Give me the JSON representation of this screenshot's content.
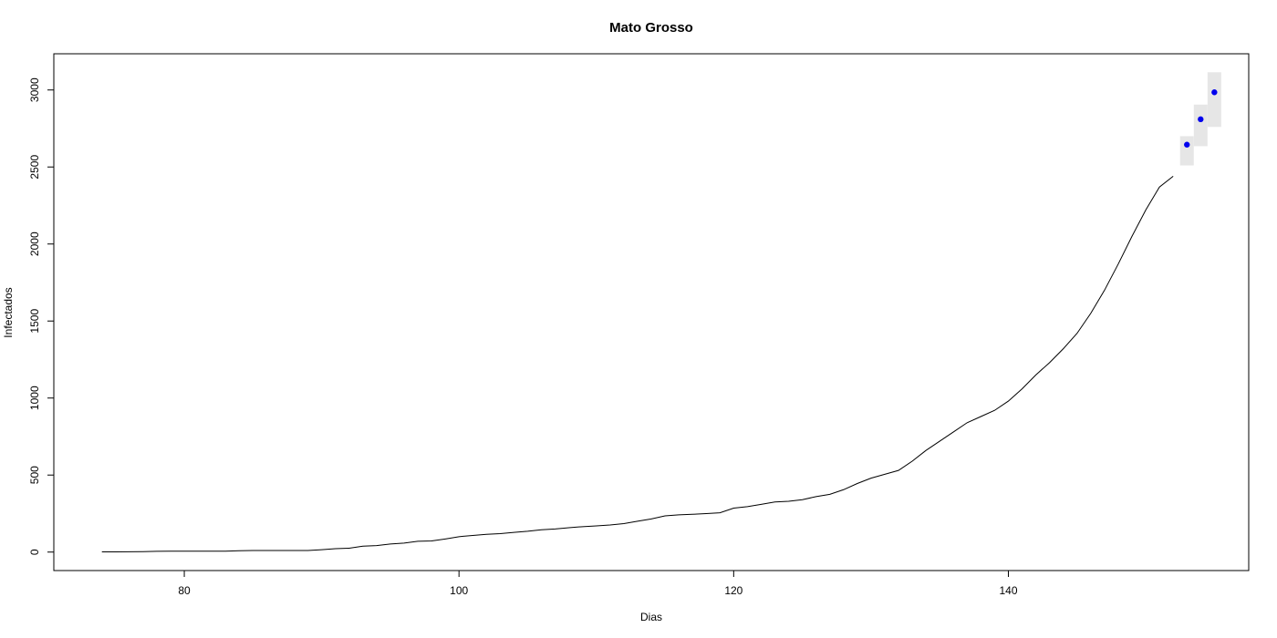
{
  "chart_data": {
    "type": "line",
    "title": "Mato Grosso",
    "xlabel": "Dias",
    "ylabel": "Infectados",
    "xlim": [
      70.5,
      157.5
    ],
    "ylim": [
      -120,
      3235
    ],
    "x_ticks": [
      80,
      100,
      120,
      140
    ],
    "y_ticks": [
      0,
      500,
      1000,
      1500,
      2000,
      2500,
      3000
    ],
    "grid": false,
    "legend": "none",
    "colors": {
      "line": "#000000",
      "forecast_point": "#0000ee",
      "forecast_band": "#e6e6e6"
    },
    "series": [
      {
        "x": [
          74,
          75,
          76,
          77,
          78,
          79,
          80,
          81,
          82,
          83,
          84,
          85,
          86,
          87,
          88,
          89,
          90,
          91,
          92,
          93,
          94,
          95,
          96,
          97,
          98,
          99,
          100,
          101,
          102,
          103,
          104,
          105,
          106,
          107,
          108,
          109,
          110,
          111,
          112,
          113,
          114,
          115,
          116,
          117,
          118,
          119,
          120,
          121,
          122,
          123,
          124,
          125,
          126,
          127,
          128,
          129,
          130,
          131,
          132,
          133,
          134,
          135,
          136,
          137,
          138,
          139,
          140,
          141,
          142,
          143,
          144,
          145,
          146,
          147,
          148,
          149,
          150,
          151,
          152
        ],
        "values": [
          1,
          1,
          2,
          3,
          5,
          6,
          6,
          6,
          6,
          6,
          9,
          10,
          10,
          10,
          10,
          10,
          15,
          22,
          25,
          38,
          42,
          52,
          58,
          70,
          72,
          85,
          100,
          108,
          115,
          120,
          128,
          135,
          145,
          150,
          158,
          165,
          170,
          176,
          185,
          200,
          215,
          235,
          242,
          245,
          250,
          255,
          285,
          295,
          310,
          325,
          330,
          340,
          360,
          375,
          405,
          445,
          480,
          505,
          530,
          590,
          660,
          720,
          780,
          840,
          880,
          920,
          980,
          1060,
          1150,
          1230,
          1320,
          1420,
          1550,
          1700,
          1870,
          2050,
          2220,
          2370,
          2440
        ]
      }
    ],
    "forecast": {
      "x": [
        153,
        154,
        155
      ],
      "values": [
        2645,
        2810,
        2985
      ],
      "lower": [
        2510,
        2635,
        2760
      ],
      "upper": [
        2700,
        2905,
        3115
      ]
    }
  }
}
